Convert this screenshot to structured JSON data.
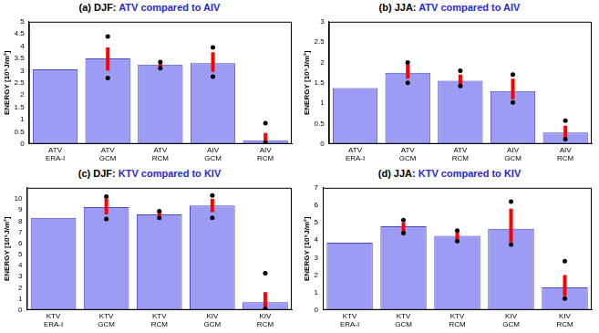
{
  "chart_data": [
    {
      "type": "bar",
      "title": "(a) DJF: ATV compared to AIV",
      "y_label": "ENERGY [10⁵J/m²]",
      "categories": [
        [
          "ATV",
          "ERA-I"
        ],
        [
          "ATV",
          "GCM"
        ],
        [
          "ATV",
          "RCM"
        ],
        [
          "AIV",
          "GCM"
        ],
        [
          "AIV",
          "RCM"
        ]
      ],
      "values": [
        3.05,
        3.5,
        3.25,
        3.3,
        0.15
      ],
      "error_low": [
        null,
        3.0,
        3.15,
        2.95,
        0.05
      ],
      "error_high": [
        null,
        3.95,
        3.35,
        3.75,
        0.45
      ],
      "error_min": [
        null,
        2.7,
        3.1,
        2.75,
        0.05
      ],
      "error_max": [
        null,
        4.4,
        3.35,
        3.95,
        0.85
      ],
      "color": "#9c9cf4",
      "grid": false,
      "ylim": [
        0,
        5
      ],
      "yticks": [
        0,
        0.5,
        1,
        1.5,
        2,
        2.5,
        3,
        3.5,
        4,
        4.5,
        5
      ]
    },
    {
      "type": "bar",
      "title": "(b) JJA: ATV compared to AIV",
      "y_label": "ENERGY [10⁵J/m²]",
      "categories": [
        [
          "ATV",
          "ERA-I"
        ],
        [
          "ATV",
          "GCM"
        ],
        [
          "ATV",
          "RCM"
        ],
        [
          "AIV",
          "GCM"
        ],
        [
          "AIV",
          "RCM"
        ]
      ],
      "values": [
        1.37,
        1.75,
        1.55,
        1.3,
        0.28
      ],
      "error_low": [
        null,
        1.6,
        1.45,
        1.1,
        0.15
      ],
      "error_high": [
        null,
        1.95,
        1.7,
        1.6,
        0.45
      ],
      "error_min": [
        null,
        1.5,
        1.42,
        1.02,
        0.12
      ],
      "error_max": [
        null,
        2.0,
        1.8,
        1.7,
        0.57
      ],
      "color": "#9c9cf4",
      "grid": false,
      "ylim": [
        0,
        3
      ],
      "yticks": [
        0,
        0.5,
        1,
        1.5,
        2,
        2.5,
        3
      ]
    },
    {
      "type": "bar",
      "title": "(c) DJF: KTV compared to KIV",
      "y_label": "ENERGY [10⁵J/m²]",
      "categories": [
        [
          "KTV",
          "ERA-I"
        ],
        [
          "KTV",
          "GCM"
        ],
        [
          "KTV",
          "RCM"
        ],
        [
          "KIV",
          "GCM"
        ],
        [
          "KIV",
          "RCM"
        ]
      ],
      "values": [
        8.3,
        9.25,
        8.6,
        9.4,
        0.7
      ],
      "error_low": [
        null,
        8.6,
        8.4,
        8.8,
        0.2
      ],
      "error_high": [
        null,
        10.0,
        8.85,
        10.0,
        1.6
      ],
      "error_min": [
        null,
        8.2,
        8.3,
        8.3,
        0.1
      ],
      "error_max": [
        null,
        10.2,
        8.9,
        10.3,
        3.3
      ],
      "color": "#9c9cf4",
      "grid": false,
      "ylim": [
        0,
        11
      ],
      "yticks": [
        0,
        1,
        2,
        3,
        4,
        5,
        6,
        7,
        8,
        9,
        10
      ]
    },
    {
      "type": "bar",
      "title": "(d) JJA: KTV compared to KIV",
      "y_label": "ENERGY [10⁵J/m²]",
      "categories": [
        [
          "KTV",
          "ERA-I"
        ],
        [
          "KTV",
          "GCM"
        ],
        [
          "KTV",
          "RCM"
        ],
        [
          "KIV",
          "GCM"
        ],
        [
          "KIV",
          "RCM"
        ]
      ],
      "values": [
        3.85,
        4.8,
        4.25,
        4.65,
        1.3
      ],
      "error_low": [
        null,
        4.5,
        4.05,
        3.9,
        0.8
      ],
      "error_high": [
        null,
        5.0,
        4.45,
        5.8,
        2.0
      ],
      "error_min": [
        null,
        4.4,
        3.95,
        3.75,
        0.65
      ],
      "error_max": [
        null,
        5.15,
        4.55,
        6.2,
        2.8
      ],
      "color": "#9c9cf4",
      "grid": false,
      "ylim": [
        0,
        7
      ],
      "yticks": [
        0,
        1,
        2,
        3,
        4,
        5,
        6,
        7
      ]
    }
  ]
}
